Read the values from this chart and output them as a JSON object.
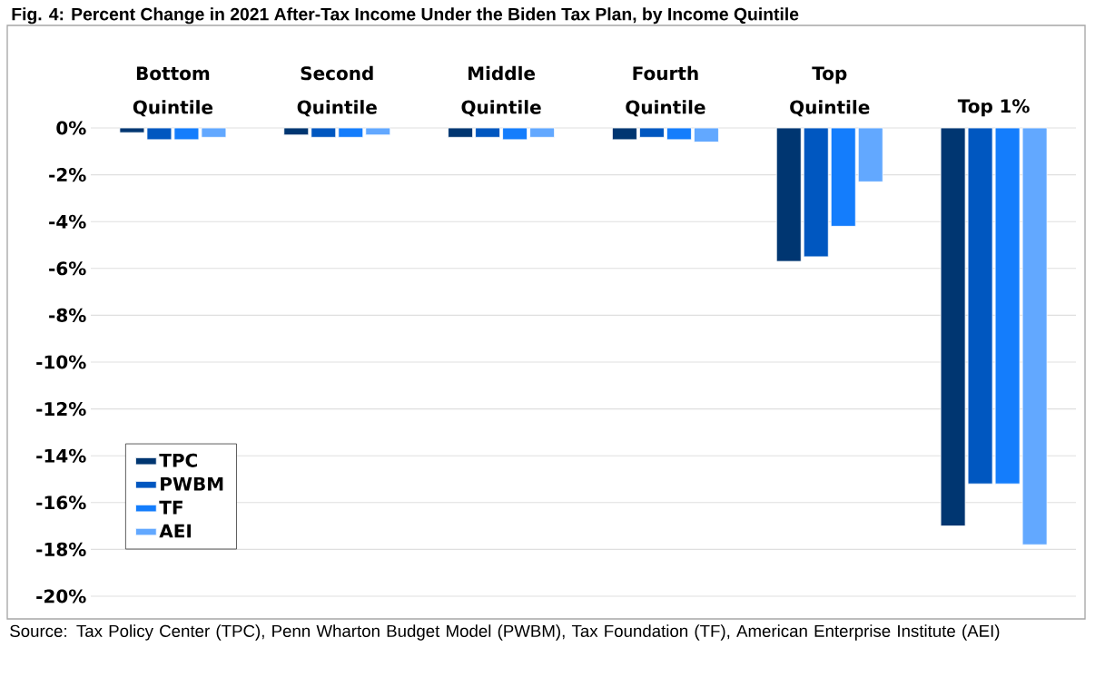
{
  "chart_data": {
    "type": "bar",
    "title": "Fig. 4: Percent Change in 2021 After-Tax Income Under the Biden Tax Plan, by Income Quintile",
    "categories": [
      "Bottom Quintile",
      "Second Quintile",
      "Middle Quintile",
      "Fourth Quintile",
      "Top Quintile",
      "Top 1%"
    ],
    "series": [
      {
        "name": "TPC",
        "color": "#003671",
        "values": [
          -0.2,
          -0.3,
          -0.4,
          -0.5,
          -5.7,
          -17.0
        ]
      },
      {
        "name": "PWBM",
        "color": "#0057c0",
        "values": [
          -0.5,
          -0.4,
          -0.4,
          -0.4,
          -5.5,
          -15.2
        ]
      },
      {
        "name": "TF",
        "color": "#147dfc",
        "values": [
          -0.5,
          -0.4,
          -0.5,
          -0.5,
          -4.2,
          -15.2
        ]
      },
      {
        "name": "AEI",
        "color": "#62a8ff",
        "values": [
          -0.4,
          -0.3,
          -0.4,
          -0.6,
          -2.3,
          -17.8
        ]
      }
    ],
    "ylim": [
      -20,
      0
    ],
    "yticks": [
      {
        "value": -20,
        "label": "-20%"
      },
      {
        "value": -18,
        "label": "-18%"
      },
      {
        "value": -16,
        "label": "-16%"
      },
      {
        "value": -14,
        "label": "-14%"
      },
      {
        "value": -12,
        "label": "-12%"
      },
      {
        "value": -10,
        "label": "-10%"
      },
      {
        "value": -8,
        "label": "-8%"
      },
      {
        "value": -6,
        "label": "-6%"
      },
      {
        "value": -4,
        "label": "-4%"
      },
      {
        "value": -2,
        "label": "-2%"
      },
      {
        "value": 0,
        "label": "0%"
      }
    ],
    "grid": "y",
    "legend": "bottom left",
    "annotations": [
      "Source: Tax Policy Center (TPC), Penn Wharton Budget Model (PWBM), Tax Foundation (TF), American Enterprise Institute (AEI)"
    ]
  }
}
